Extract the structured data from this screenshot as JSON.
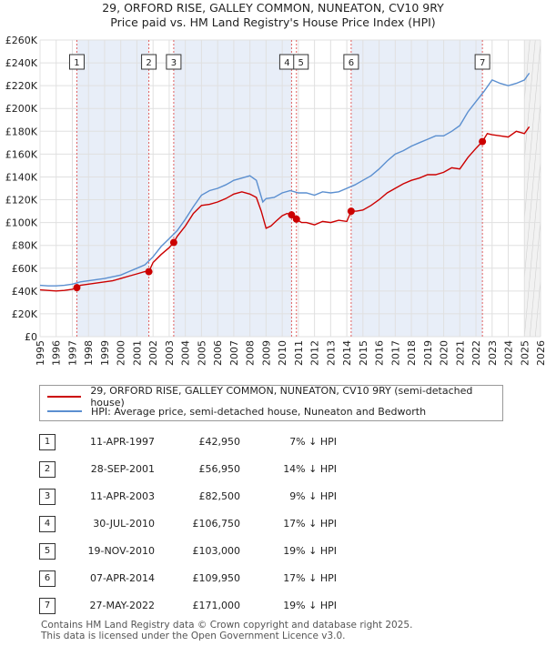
{
  "header": {
    "title": "29, ORFORD RISE, GALLEY COMMON, NUNEATON, CV10 9RY",
    "subtitle": "Price paid vs. HM Land Registry's House Price Index (HPI)"
  },
  "colors": {
    "red": "#cc0000",
    "blue": "#5b8fd0",
    "shade": "#e8eef8",
    "grid": "#e0e0e0"
  },
  "chart_data": {
    "type": "line",
    "title": "29, ORFORD RISE, GALLEY COMMON, NUNEATON, CV10 9RY",
    "xlim": [
      1995,
      2026
    ],
    "ylim": [
      0,
      260000
    ],
    "x_ticks": [
      "1995",
      "1996",
      "1997",
      "1998",
      "1999",
      "2000",
      "2001",
      "2002",
      "2003",
      "2004",
      "2005",
      "2006",
      "2007",
      "2008",
      "2009",
      "2010",
      "2011",
      "2012",
      "2013",
      "2014",
      "2015",
      "2016",
      "2017",
      "2018",
      "2019",
      "2020",
      "2021",
      "2022",
      "2023",
      "2024",
      "2025",
      "2026"
    ],
    "y_ticks": [
      {
        "value": 0,
        "label": "£0"
      },
      {
        "value": 20000,
        "label": "£20K"
      },
      {
        "value": 40000,
        "label": "£40K"
      },
      {
        "value": 60000,
        "label": "£60K"
      },
      {
        "value": 80000,
        "label": "£80K"
      },
      {
        "value": 100000,
        "label": "£100K"
      },
      {
        "value": 120000,
        "label": "£120K"
      },
      {
        "value": 140000,
        "label": "£140K"
      },
      {
        "value": 160000,
        "label": "£160K"
      },
      {
        "value": 180000,
        "label": "£180K"
      },
      {
        "value": 200000,
        "label": "£200K"
      },
      {
        "value": 220000,
        "label": "£220K"
      },
      {
        "value": 240000,
        "label": "£240K"
      },
      {
        "value": 260000,
        "label": "£260K"
      }
    ],
    "future_from": 2025.0,
    "series": [
      {
        "name": "29, ORFORD RISE, GALLEY COMMON, NUNEATON, CV10 9RY (semi-detached house)",
        "color": "#cc0000",
        "x": [
          1995.0,
          1995.5,
          1996.0,
          1996.5,
          1997.0,
          1997.28,
          1997.5,
          1998.0,
          1998.5,
          1999.0,
          1999.5,
          2000.0,
          2000.5,
          2001.0,
          2001.5,
          2001.74,
          2002.0,
          2002.5,
          2003.0,
          2003.28,
          2003.5,
          2004.0,
          2004.5,
          2005.0,
          2005.5,
          2006.0,
          2006.5,
          2007.0,
          2007.5,
          2008.0,
          2008.4,
          2008.7,
          2009.0,
          2009.3,
          2009.6,
          2010.0,
          2010.3,
          2010.58,
          2010.88,
          2011.2,
          2011.5,
          2012.0,
          2012.5,
          2013.0,
          2013.5,
          2014.0,
          2014.27,
          2014.6,
          2015.0,
          2015.5,
          2016.0,
          2016.5,
          2017.0,
          2017.5,
          2018.0,
          2018.5,
          2019.0,
          2019.5,
          2020.0,
          2020.5,
          2021.0,
          2021.5,
          2022.0,
          2022.4,
          2022.7,
          2023.0,
          2023.5,
          2024.0,
          2024.5,
          2025.0,
          2025.3
        ],
        "y": [
          41000,
          40500,
          40000,
          40500,
          41500,
          42950,
          45000,
          46000,
          47000,
          48000,
          49000,
          51000,
          53000,
          55000,
          57000,
          56950,
          65000,
          72000,
          78000,
          82500,
          88000,
          97000,
          108000,
          115000,
          116000,
          118000,
          121000,
          125000,
          127000,
          125000,
          122000,
          110000,
          95000,
          97000,
          101000,
          106000,
          108000,
          106750,
          103000,
          100000,
          100000,
          98000,
          101000,
          100000,
          102000,
          101000,
          109950,
          110000,
          111000,
          115000,
          120000,
          126000,
          130000,
          134000,
          137000,
          139000,
          142000,
          142000,
          144000,
          148000,
          147000,
          157000,
          165000,
          171000,
          178000,
          177000,
          176000,
          175000,
          180000,
          178000,
          184000
        ]
      },
      {
        "name": "HPI: Average price, semi-detached house, Nuneaton and Bedworth",
        "color": "#5b8fd0",
        "x": [
          1995.0,
          1995.5,
          1996.0,
          1996.5,
          1997.0,
          1997.5,
          1998.0,
          1998.5,
          1999.0,
          1999.5,
          2000.0,
          2000.5,
          2001.0,
          2001.5,
          2002.0,
          2002.5,
          2003.0,
          2003.5,
          2004.0,
          2004.5,
          2005.0,
          2005.5,
          2006.0,
          2006.5,
          2007.0,
          2007.5,
          2008.0,
          2008.4,
          2008.8,
          2009.0,
          2009.5,
          2010.0,
          2010.5,
          2011.0,
          2011.5,
          2012.0,
          2012.5,
          2013.0,
          2013.5,
          2014.0,
          2014.5,
          2015.0,
          2015.5,
          2016.0,
          2016.5,
          2017.0,
          2017.5,
          2018.0,
          2018.5,
          2019.0,
          2019.5,
          2020.0,
          2020.5,
          2021.0,
          2021.5,
          2022.0,
          2022.5,
          2023.0,
          2023.5,
          2024.0,
          2024.5,
          2025.0,
          2025.3
        ],
        "y": [
          45000,
          44500,
          44500,
          45000,
          46000,
          48000,
          49000,
          50000,
          51000,
          52500,
          54000,
          57000,
          60000,
          63000,
          70000,
          79000,
          86000,
          93000,
          103000,
          114000,
          124000,
          128000,
          130000,
          133000,
          137000,
          139000,
          141000,
          137000,
          118000,
          121000,
          122000,
          126000,
          128000,
          126000,
          126000,
          124000,
          127000,
          126000,
          127000,
          130000,
          133000,
          137000,
          141000,
          147000,
          154000,
          160000,
          163000,
          167000,
          170000,
          173000,
          176000,
          176000,
          180000,
          185000,
          197000,
          206000,
          215000,
          225000,
          222000,
          220000,
          222000,
          225000,
          231000
        ]
      }
    ],
    "sales": [
      {
        "label": "1",
        "date": "11-APR-1997",
        "x": 1997.28,
        "price": "£42,950",
        "value": 42950,
        "hpi": "7% ↓ HPI"
      },
      {
        "label": "2",
        "date": "28-SEP-2001",
        "x": 2001.74,
        "price": "£56,950",
        "value": 56950,
        "hpi": "14% ↓ HPI"
      },
      {
        "label": "3",
        "date": "11-APR-2003",
        "x": 2003.28,
        "price": "£82,500",
        "value": 82500,
        "hpi": "9% ↓ HPI"
      },
      {
        "label": "4",
        "date": "30-JUL-2010",
        "x": 2010.58,
        "price": "£106,750",
        "value": 106750,
        "hpi": "17% ↓ HPI"
      },
      {
        "label": "5",
        "date": "19-NOV-2010",
        "x": 2010.88,
        "price": "£103,000",
        "value": 103000,
        "hpi": "19% ↓ HPI"
      },
      {
        "label": "6",
        "date": "07-APR-2014",
        "x": 2014.27,
        "price": "£109,950",
        "value": 109950,
        "hpi": "17% ↓ HPI"
      },
      {
        "label": "7",
        "date": "27-MAY-2022",
        "x": 2022.4,
        "price": "£171,000",
        "value": 171000,
        "hpi": "19% ↓ HPI"
      }
    ]
  },
  "legend": {
    "red_label": "29, ORFORD RISE, GALLEY COMMON, NUNEATON, CV10 9RY (semi-detached house)",
    "blue_label": "HPI: Average price, semi-detached house, Nuneaton and Bedworth"
  },
  "footer": {
    "line1": "Contains HM Land Registry data © Crown copyright and database right 2025.",
    "line2": "This data is licensed under the Open Government Licence v3.0."
  }
}
